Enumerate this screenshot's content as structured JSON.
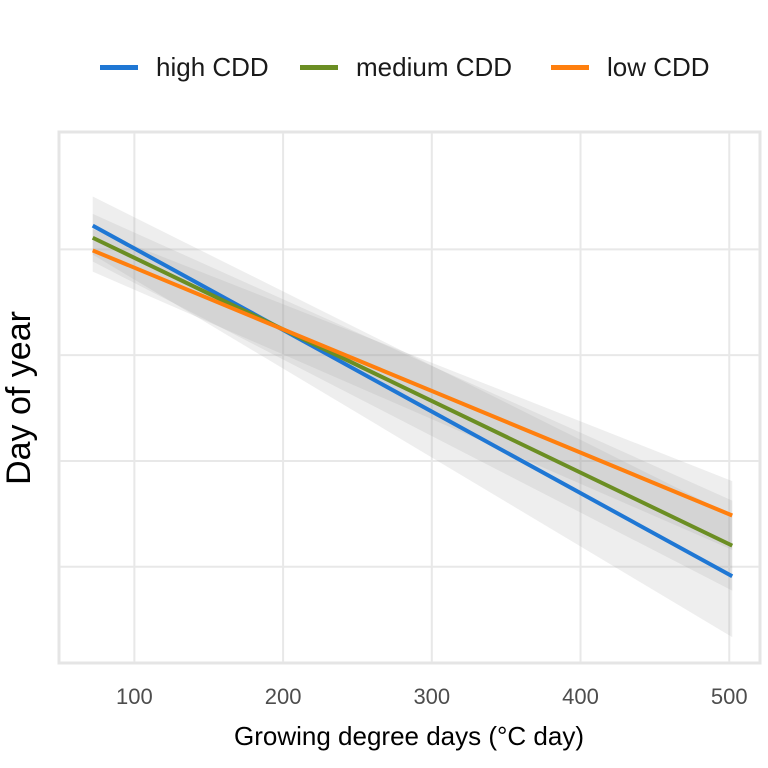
{
  "chart_data": {
    "type": "line",
    "title": "",
    "xlabel": "Growing degree days (°C day)",
    "ylabel": "Day of year",
    "xlim": [
      50,
      520
    ],
    "ylim": [
      0,
      100
    ],
    "x_ticks": [
      100,
      200,
      300,
      400,
      500
    ],
    "x_tick_labels": [
      "100",
      "200",
      "300",
      "400",
      "500"
    ],
    "y_ticks": [
      18,
      38,
      58,
      78
    ],
    "y_tick_labels": [],
    "grid": true,
    "legend_position": "top",
    "series": [
      {
        "name": "high CDD",
        "color": "#1f77d4",
        "x": [
          72,
          502
        ],
        "y": [
          82.5,
          16.2
        ],
        "ci_halfwidth": [
          5.5,
          11.5
        ]
      },
      {
        "name": "medium CDD",
        "color": "#6b8e23",
        "x": [
          72,
          502
        ],
        "y": [
          80.2,
          22.0
        ],
        "ci_halfwidth": [
          4.5,
          8.5
        ]
      },
      {
        "name": "low CDD",
        "color": "#ff7f0e",
        "x": [
          72,
          502
        ],
        "y": [
          77.8,
          27.7
        ],
        "ci_halfwidth": [
          4.0,
          6.5
        ]
      }
    ]
  }
}
